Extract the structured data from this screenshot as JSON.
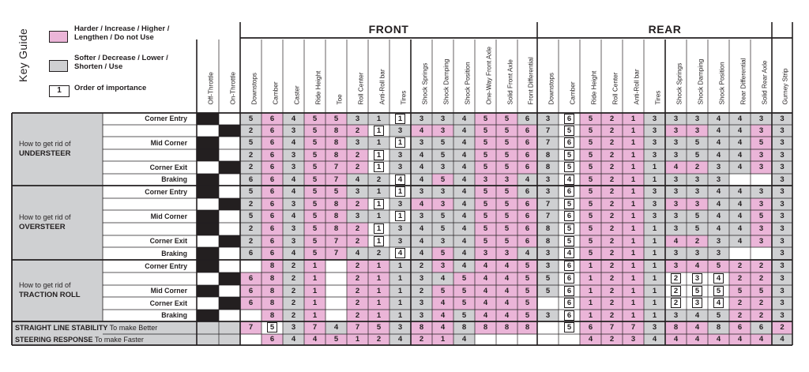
{
  "key": {
    "title": "Key Guide",
    "items": [
      {
        "swatch_color": "#ebb5d8",
        "text": "Harder / Increase / Higher / Lengthen / Do not Use"
      },
      {
        "swatch_color": "#cfd0d2",
        "text": "Softer / Decrease / Lower / Shorten / Use"
      },
      {
        "box_value": "1",
        "text": "Order of importance"
      }
    ]
  },
  "groups": {
    "front": "FRONT",
    "rear": "REAR"
  },
  "columns": [
    "Off-Throttle",
    "On-Throttle",
    "Downstops",
    "Camber",
    "Caster",
    "Ride Height",
    "Toe",
    "Roll Center",
    "Anti-Roll bar",
    "Tires",
    "Shock Springs",
    "Shock Damping",
    "Shock Position",
    "One-Way Front Axle",
    "Solid Front Axle",
    "Front Differential",
    "Downstops",
    "Camber",
    "Ride Height",
    "Roll Center",
    "Anti-Roll bar",
    "Tires",
    "Shock Springs",
    "Shock Damping",
    "Shock Position",
    "Rear Differential",
    "Solid Rear Axle",
    "Gurney Strip"
  ],
  "colors": {
    "harder": "#ebb5d8",
    "softer": "#cfd0d2",
    "throttle": "#231f20",
    "grid": "#231f20"
  },
  "sections": [
    {
      "line1": "How to get rid of",
      "line2": "UNDERSTEER",
      "row_start": 0,
      "row_count": 6
    },
    {
      "line1": "How to get rid of",
      "line2": "OVERSTEER",
      "row_start": 6,
      "row_count": 6
    },
    {
      "line1": "How to get rid of",
      "line2": "TRACTION ROLL",
      "row_start": 12,
      "row_count": 5
    }
  ],
  "rows": [
    {
      "label": "Corner Entry",
      "cells": [
        "B",
        "W",
        "G5",
        "P6",
        "G4",
        "P5",
        "P5",
        "G3",
        "G1",
        "W1",
        "G3",
        "G3",
        "G4",
        "P5",
        "P5",
        "G6",
        "G3",
        "W6",
        "P5",
        "P2",
        "P1",
        "G3",
        "G3",
        "G3",
        "G4",
        "G4",
        "G3",
        "G3"
      ]
    },
    {
      "label": "",
      "cells": [
        "W",
        "B",
        "G2",
        "P6",
        "G3",
        "P5",
        "P8",
        "P2",
        "W1",
        "G3",
        "P4",
        "P3",
        "G4",
        "P5",
        "P5",
        "P6",
        "G7",
        "W5",
        "P5",
        "P2",
        "P1",
        "G3",
        "P3",
        "P3",
        "G4",
        "G4",
        "P3",
        "G3"
      ]
    },
    {
      "label": "Mid Corner",
      "cells": [
        "B",
        "W",
        "G5",
        "P6",
        "G4",
        "P5",
        "P8",
        "G3",
        "G1",
        "W1",
        "G3",
        "G5",
        "G4",
        "P5",
        "P5",
        "P6",
        "G7",
        "W6",
        "P5",
        "P2",
        "P1",
        "G3",
        "G3",
        "G5",
        "G4",
        "G4",
        "P5",
        "G3"
      ]
    },
    {
      "label": "",
      "cells": [
        "B",
        "W",
        "G2",
        "P6",
        "G3",
        "P5",
        "P8",
        "P2",
        "W1",
        "G3",
        "G4",
        "G5",
        "G4",
        "P5",
        "P5",
        "P6",
        "G8",
        "W5",
        "P5",
        "P2",
        "P1",
        "G3",
        "G3",
        "G5",
        "G4",
        "G4",
        "P3",
        "G3"
      ]
    },
    {
      "label": "Corner Exit",
      "cells": [
        "W",
        "B",
        "G2",
        "P6",
        "G3",
        "P5",
        "P7",
        "P2",
        "W1",
        "G3",
        "G4",
        "G3",
        "G4",
        "P5",
        "P5",
        "P6",
        "G8",
        "W5",
        "P5",
        "P2",
        "P1",
        "G1",
        "P4",
        "P2",
        "G3",
        "G4",
        "P3",
        "G3"
      ]
    },
    {
      "label": "Braking",
      "cells": [
        "B",
        "W",
        "G6",
        "P6",
        "G4",
        "P5",
        "P7",
        "G4",
        "G2",
        "W4",
        "G4",
        "P5",
        "G4",
        "P3",
        "P3",
        "G4",
        "G3",
        "W4",
        "P5",
        "P2",
        "P1",
        "G1",
        "G3",
        "G3",
        "G3",
        "W",
        "W",
        "G3"
      ]
    },
    {
      "label": "Corner Entry",
      "cells": [
        "B",
        "W",
        "G5",
        "P6",
        "G4",
        "P5",
        "P5",
        "G3",
        "G1",
        "W1",
        "G3",
        "G3",
        "G4",
        "P5",
        "P5",
        "G6",
        "G3",
        "W6",
        "P5",
        "P2",
        "P1",
        "G3",
        "G3",
        "G3",
        "G4",
        "G4",
        "G3",
        "G3"
      ]
    },
    {
      "label": "",
      "cells": [
        "W",
        "B",
        "G2",
        "P6",
        "G3",
        "P5",
        "P8",
        "P2",
        "W1",
        "G3",
        "P4",
        "P3",
        "G4",
        "P5",
        "P5",
        "P6",
        "G7",
        "W5",
        "P5",
        "P2",
        "P1",
        "G3",
        "P3",
        "P3",
        "G4",
        "G4",
        "P3",
        "G3"
      ]
    },
    {
      "label": "Mid Corner",
      "cells": [
        "B",
        "W",
        "G5",
        "P6",
        "G4",
        "P5",
        "P8",
        "G3",
        "G1",
        "W1",
        "G3",
        "G5",
        "G4",
        "P5",
        "P5",
        "P6",
        "G7",
        "W6",
        "P5",
        "P2",
        "P1",
        "G3",
        "G3",
        "G5",
        "G4",
        "G4",
        "P5",
        "G3"
      ]
    },
    {
      "label": "",
      "cells": [
        "B",
        "W",
        "G2",
        "P6",
        "G3",
        "P5",
        "P8",
        "P2",
        "W1",
        "G3",
        "G4",
        "G5",
        "G4",
        "P5",
        "P5",
        "P6",
        "G8",
        "W5",
        "P5",
        "P2",
        "P1",
        "G1",
        "G3",
        "G5",
        "G4",
        "G4",
        "P3",
        "G3"
      ]
    },
    {
      "label": "Corner Exit",
      "cells": [
        "W",
        "B",
        "G2",
        "P6",
        "G3",
        "P5",
        "P7",
        "P2",
        "W1",
        "G3",
        "G4",
        "G3",
        "G4",
        "P5",
        "P5",
        "P6",
        "G8",
        "W5",
        "P5",
        "P2",
        "P1",
        "G1",
        "P4",
        "P2",
        "G3",
        "G4",
        "P3",
        "G3"
      ]
    },
    {
      "label": "Braking",
      "cells": [
        "B",
        "W",
        "G6",
        "P6",
        "G4",
        "P5",
        "P7",
        "G4",
        "G2",
        "W4",
        "G4",
        "P5",
        "G4",
        "P3",
        "P3",
        "G4",
        "G3",
        "W4",
        "P5",
        "P2",
        "P1",
        "G1",
        "G3",
        "G3",
        "G3",
        "W",
        "W",
        "G3"
      ]
    },
    {
      "label": "Corner Entry",
      "cells": [
        "B",
        "W",
        "W",
        "P8",
        "G2",
        "P1",
        "W",
        "P2",
        "P1",
        "G1",
        "G2",
        "P3",
        "G4",
        "P4",
        "P4",
        "P5",
        "G3",
        "W6",
        "P1",
        "P2",
        "P1",
        "G1",
        "P3",
        "P4",
        "P5",
        "P2",
        "P2",
        "G3"
      ]
    },
    {
      "label": "",
      "cells": [
        "W",
        "B",
        "P6",
        "P8",
        "G2",
        "P1",
        "W",
        "P2",
        "P1",
        "G1",
        "G3",
        "G4",
        "P5",
        "P4",
        "P4",
        "P5",
        "G5",
        "W6",
        "P1",
        "P2",
        "P1",
        "G1",
        "W2",
        "W3",
        "W4",
        "P2",
        "P2",
        "G3"
      ]
    },
    {
      "label": "Mid Corner",
      "cells": [
        "B",
        "W",
        "P6",
        "P8",
        "G2",
        "P1",
        "W",
        "P2",
        "P1",
        "G1",
        "G2",
        "P5",
        "P5",
        "P4",
        "P4",
        "P5",
        "G5",
        "W6",
        "P1",
        "P2",
        "P1",
        "G1",
        "W2",
        "W5",
        "W5",
        "P5",
        "P5",
        "G3"
      ]
    },
    {
      "label": "Corner Exit",
      "cells": [
        "W",
        "B",
        "P6",
        "P8",
        "G2",
        "P1",
        "W",
        "P2",
        "P1",
        "G1",
        "G3",
        "P4",
        "P5",
        "P4",
        "P4",
        "P5",
        "W",
        "W6",
        "P1",
        "P2",
        "P1",
        "G1",
        "W2",
        "W3",
        "W4",
        "P2",
        "P2",
        "G3"
      ]
    },
    {
      "label": "Braking",
      "cells": [
        "B",
        "W",
        "W",
        "P8",
        "G2",
        "P1",
        "W",
        "P2",
        "P1",
        "G1",
        "G3",
        "P4",
        "G5",
        "P4",
        "P4",
        "P5",
        "G3",
        "W6",
        "P1",
        "P2",
        "P1",
        "G1",
        "G3",
        "G4",
        "G5",
        "P2",
        "P2",
        "G3"
      ]
    }
  ],
  "bottom_rows": [
    {
      "bold": "STRAIGHT LINE STABILITY",
      "rest": " To make Better",
      "cells": [
        "G",
        "G",
        "P7",
        "W5",
        "G3",
        "P7",
        "G4",
        "P7",
        "P5",
        "G3",
        "P8",
        "P4",
        "G8",
        "P8",
        "P8",
        "P8",
        "W",
        "W5",
        "P6",
        "P7",
        "P7",
        "G3",
        "P8",
        "P4",
        "G8",
        "P6",
        "G6",
        "P2"
      ]
    },
    {
      "bold": "STEERING RESPONSE",
      "rest": " To make Faster",
      "cells": [
        "G",
        "G",
        "W",
        "P6",
        "G4",
        "P4",
        "P5",
        "P1",
        "P2",
        "G4",
        "P2",
        "P1",
        "G4",
        "X",
        "X",
        "X",
        "W",
        "W",
        "P4",
        "P2",
        "P3",
        "G4",
        "P4",
        "P4",
        "P4",
        "P4",
        "P4",
        "G4"
      ]
    }
  ]
}
